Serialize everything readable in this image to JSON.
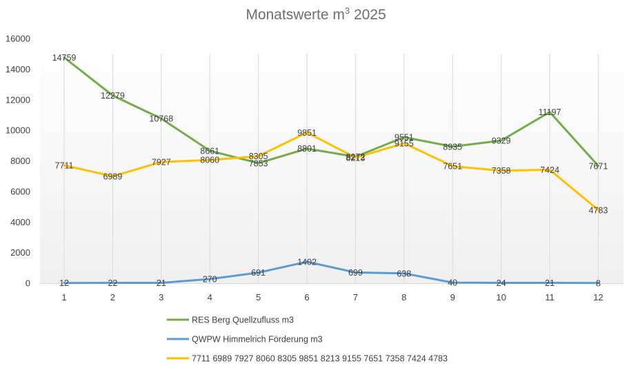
{
  "chart_data": {
    "type": "line",
    "title": "Monatswerte m³ 2025",
    "title_main": "Monatswerte m",
    "title_sup": "3",
    "title_year": "2025",
    "categories": [
      "1",
      "2",
      "3",
      "4",
      "5",
      "6",
      "7",
      "8",
      "9",
      "10",
      "11",
      "12"
    ],
    "ylim": [
      0,
      16000
    ],
    "yticks": [
      0,
      2000,
      4000,
      6000,
      8000,
      10000,
      12000,
      14000,
      16000
    ],
    "grid": "vertical",
    "legend_position": "bottom",
    "series": [
      {
        "name": "RES Berg Quellzufluss m3",
        "color": "#70ad47",
        "values": [
          14759,
          12279,
          10768,
          8661,
          7853,
          8801,
          8272,
          9551,
          8935,
          9329,
          11197,
          7671
        ]
      },
      {
        "name": "QWPW Himmelrich Förderung m3",
        "color": "#5b9bd5",
        "values": [
          12,
          22,
          21,
          270,
          691,
          1402,
          699,
          638,
          40,
          24,
          21,
          8
        ]
      },
      {
        "name": "7711 6989 7927 8060 8305 9851 8213 9155 7651 7358 7424 4783",
        "color": "#ffc000",
        "values": [
          7711,
          6989,
          7927,
          8060,
          8305,
          9851,
          8213,
          9155,
          7651,
          7358,
          7424,
          4783
        ]
      }
    ]
  }
}
